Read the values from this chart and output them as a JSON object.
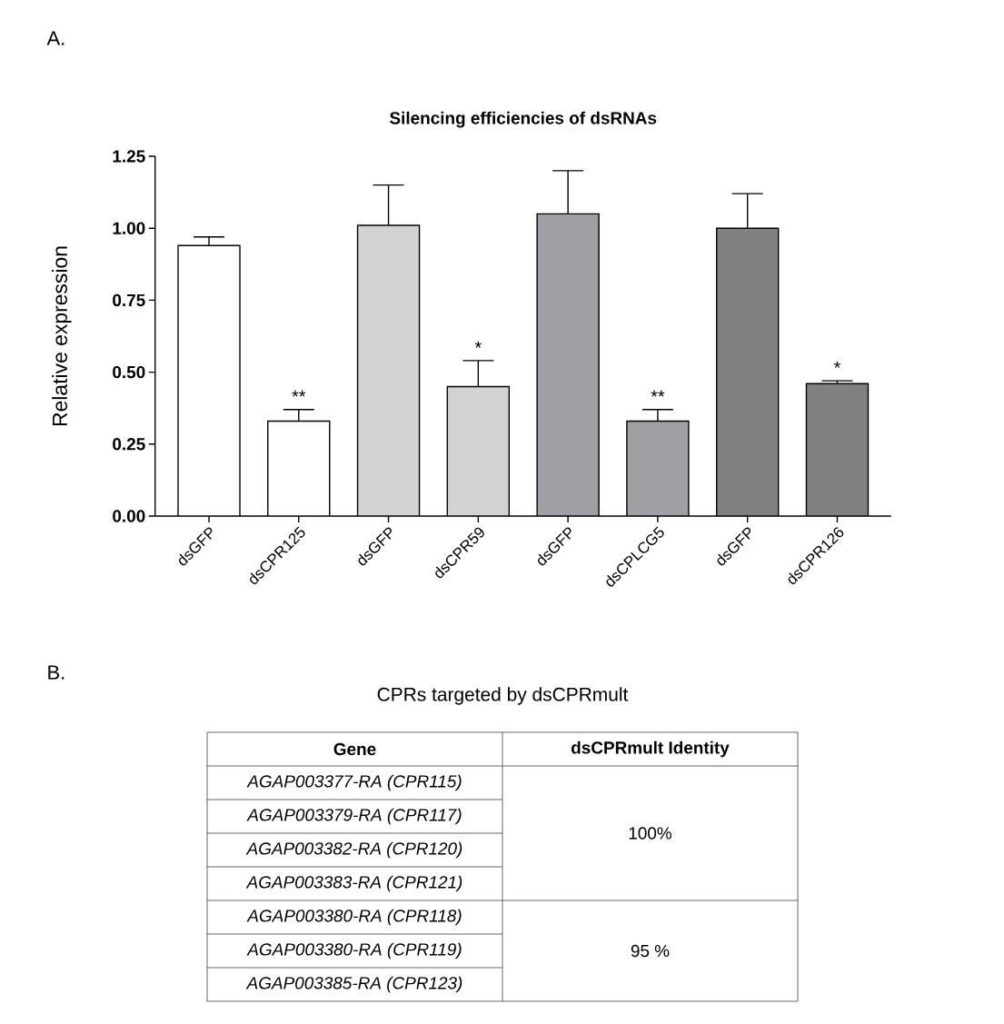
{
  "chart_data": [
    {
      "type": "bar",
      "title": "Silencing efficiencies of dsRNAs",
      "ylabel": "Relative expression",
      "categories": [
        "dsGFP",
        "dsCPR125",
        "dsGFP",
        "dsCPR59",
        "dsGFP",
        "dsCPLCG5",
        "dsGFP",
        "dsCPR126"
      ],
      "values": [
        0.94,
        0.33,
        1.01,
        0.45,
        1.05,
        0.33,
        1.0,
        0.46
      ],
      "errors": [
        [
          0.94,
          0.97
        ],
        [
          0.33,
          0.37
        ],
        [
          1.01,
          1.15
        ],
        [
          0.45,
          0.54
        ],
        [
          1.05,
          1.2
        ],
        [
          0.33,
          0.37
        ],
        [
          1.0,
          1.12
        ],
        [
          0.46,
          0.47
        ]
      ],
      "colors": [
        "#ffffff",
        "#ffffff",
        "#d3d3d3",
        "#d3d3d3",
        "#a0a0a4",
        "#a0a0a4",
        "#808080",
        "#808080"
      ],
      "ylim": [
        0,
        1.25
      ],
      "yticks": [
        {
          "value": 0,
          "label": "0.00"
        },
        {
          "value": 0.25,
          "label": "0.25"
        },
        {
          "value": 0.5,
          "label": "0.50"
        },
        {
          "value": 0.75,
          "label": "0.75"
        },
        {
          "value": 1,
          "label": "1.00"
        },
        {
          "value": 1.25,
          "label": "1.25"
        }
      ],
      "value_labels": [
        null,
        "**",
        null,
        "*",
        null,
        "**",
        null,
        "*"
      ],
      "annotations": [
        "A."
      ]
    },
    {
      "type": "other",
      "title": "CPRs targeted by dsCPRmult",
      "annotations": [
        "B.",
        "Gene",
        "dsCPRmult Identity",
        "AGAP003377-RA (CPR115)",
        "AGAP003379-RA (CPR117)",
        "AGAP003382-RA (CPR120)",
        "AGAP003383-RA (CPR121)",
        "AGAP003380-RA (CPR118)",
        "AGAP003380-RA (CPR119)",
        "AGAP003385-RA (CPR123)",
        "100%",
        "95 %"
      ]
    }
  ]
}
